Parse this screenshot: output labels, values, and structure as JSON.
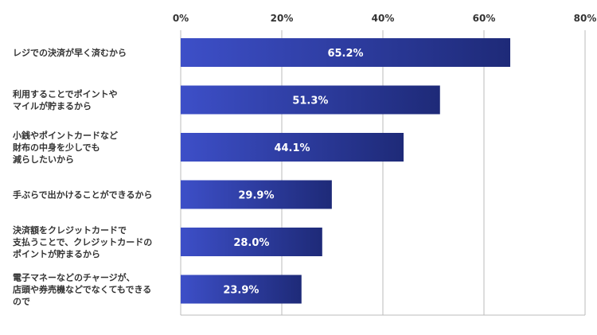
{
  "chart_data": {
    "type": "bar",
    "orientation": "horizontal",
    "categories": [
      [
        "レジでの決済が早く済むから"
      ],
      [
        "利用することでポイントや",
        "マイルが貯まるから"
      ],
      [
        "小銭やポイントカードなど",
        "財布の中身を少しでも",
        "減らしたいから"
      ],
      [
        "手ぶらで出かけることができるから"
      ],
      [
        "決済額をクレジットカードで",
        "支払うことで、クレジットカードの",
        "ポイントが貯まるから"
      ],
      [
        "電子マネーなどのチャージが、",
        "店頭や券売機などでなくてもできる",
        "ので"
      ]
    ],
    "values": [
      65.2,
      51.3,
      44.1,
      29.9,
      28.0,
      23.9
    ],
    "value_labels": [
      "65.2%",
      "51.3%",
      "44.1%",
      "29.9%",
      "28.0%",
      "23.9%"
    ],
    "xlim": [
      0,
      80
    ],
    "xticks": [
      0,
      20,
      40,
      60,
      80
    ],
    "xtick_labels": [
      "0%",
      "20%",
      "40%",
      "60%",
      "80%"
    ],
    "xaxis_position": "top",
    "grid": true,
    "colors": {
      "bar_start": "#3d4fc8",
      "bar_end": "#1e2a78",
      "grid": "#bbbbbb",
      "text": "#333333"
    }
  }
}
